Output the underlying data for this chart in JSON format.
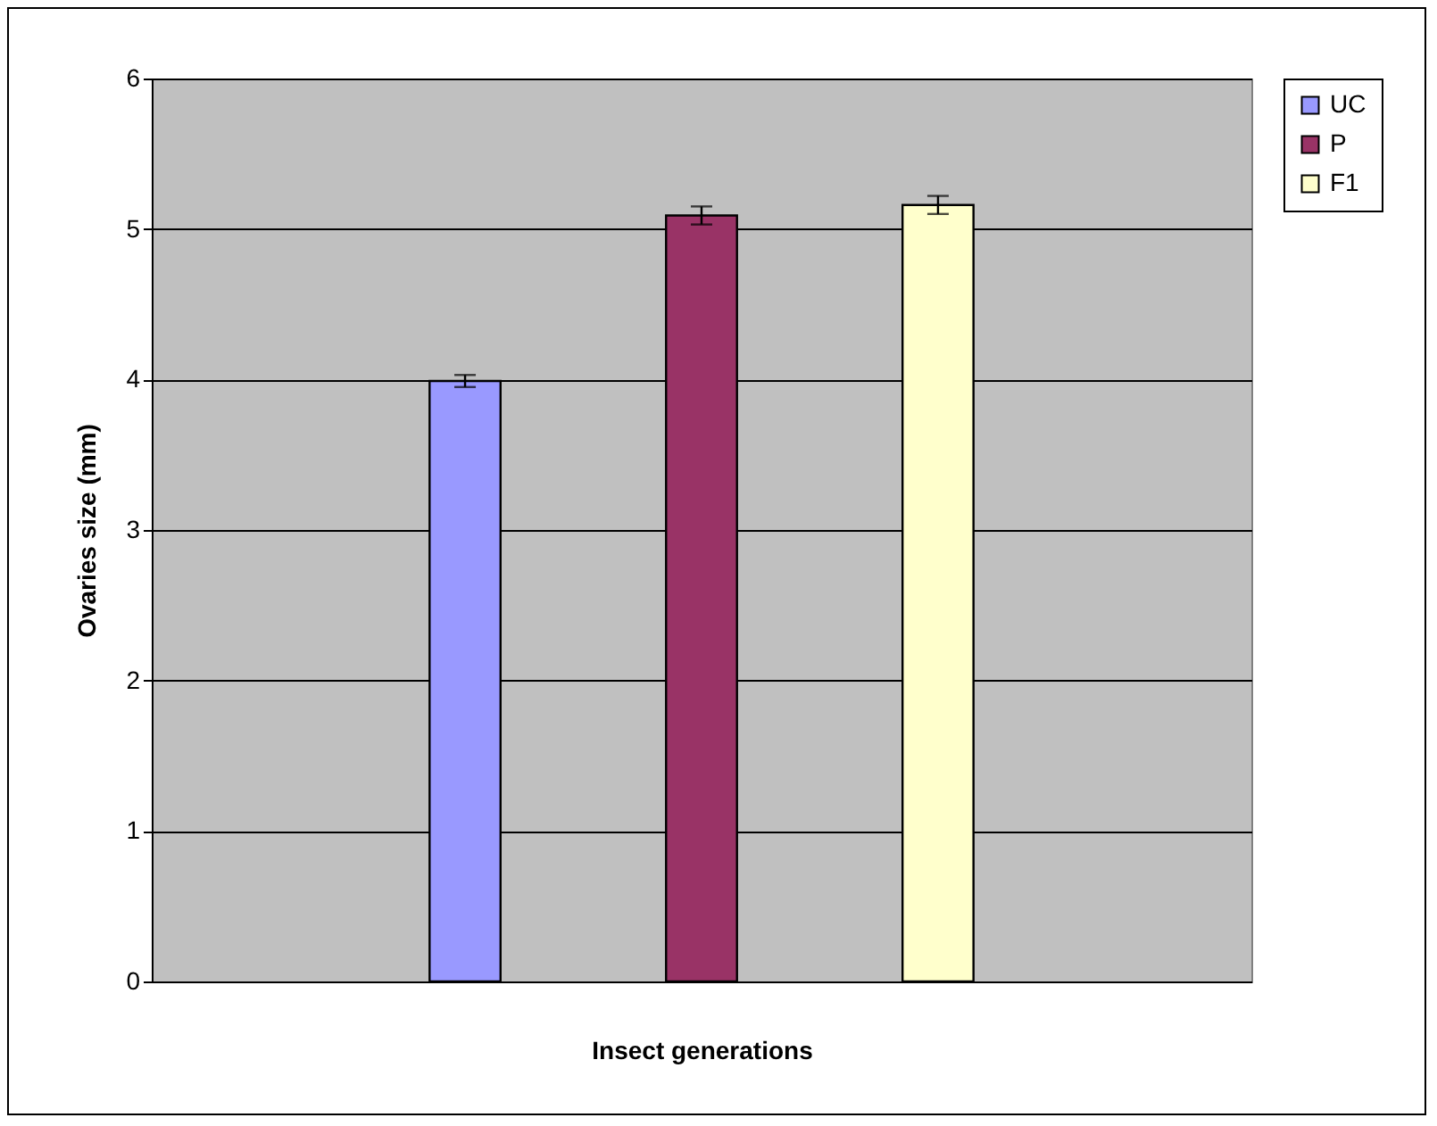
{
  "chart_data": {
    "type": "bar",
    "xlabel": "Insect generations",
    "ylabel": "Ovaries size (mm)",
    "categories": [
      null
    ],
    "series": [
      {
        "name": "UC",
        "color": "#9999ff",
        "values": [
          3.99
        ],
        "errors": [
          0.04
        ]
      },
      {
        "name": "P",
        "color": "#993366",
        "values": [
          5.09
        ],
        "errors": [
          0.06
        ]
      },
      {
        "name": "F1",
        "color": "#ffffcc",
        "values": [
          5.16
        ],
        "errors": [
          0.06
        ]
      }
    ],
    "ylim": [
      0,
      6
    ],
    "yticks": [
      0,
      1,
      2,
      3,
      4,
      5,
      6
    ],
    "grid": "y",
    "legend": "right"
  }
}
